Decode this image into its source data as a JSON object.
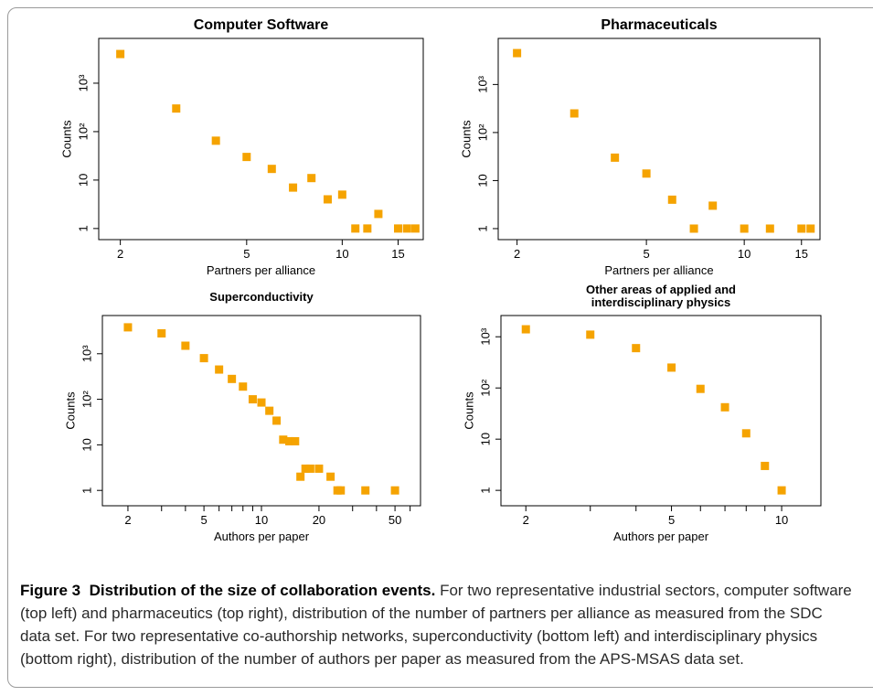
{
  "chart_data": [
    {
      "type": "scatter",
      "title": "Computer Software",
      "x_label": "Partners per alliance",
      "y_label": "Counts",
      "x": [
        2,
        3,
        4,
        5,
        6,
        7,
        8,
        9,
        10,
        11,
        12,
        13,
        15,
        16,
        17
      ],
      "values": [
        4000,
        300,
        65,
        30,
        17,
        7,
        11,
        4,
        5,
        1,
        1,
        2,
        1,
        1,
        1
      ],
      "color": "#f5a300",
      "xscale": "log",
      "yscale": "log",
      "xlim": [
        1.71,
        18
      ],
      "ylim": [
        0.59,
        8400
      ],
      "xticks": [
        2,
        5,
        10,
        15
      ],
      "yticks": [
        1,
        10,
        {
          "value": 100,
          "label": "10²"
        },
        {
          "value": 1000,
          "label": "10³"
        }
      ]
    },
    {
      "type": "scatter",
      "title": "Pharmaceuticals",
      "x_label": "Partners per alliance",
      "y_label": "Counts",
      "x": [
        2,
        3,
        4,
        5,
        6,
        7,
        8,
        10,
        12,
        15,
        16
      ],
      "values": [
        4500,
        250,
        30,
        14,
        4,
        1,
        3,
        1,
        1,
        1,
        1
      ],
      "color": "#f5a300",
      "xscale": "log",
      "yscale": "log",
      "xlim": [
        1.75,
        17.1
      ],
      "ylim": [
        0.59,
        9100
      ],
      "xticks": [
        2,
        5,
        10,
        15
      ],
      "yticks": [
        1,
        10,
        {
          "value": 100,
          "label": "10²"
        },
        {
          "value": 1000,
          "label": "10³"
        }
      ]
    },
    {
      "type": "scatter",
      "title": "Superconductivity",
      "x_label": "Authors per paper",
      "y_label": "Counts",
      "x": [
        2,
        3,
        4,
        5,
        6,
        7,
        8,
        9,
        10,
        11,
        12,
        13,
        14,
        15,
        16,
        17,
        18,
        20,
        23,
        25,
        26,
        35,
        50
      ],
      "values": [
        3800,
        2800,
        1500,
        800,
        450,
        280,
        190,
        100,
        85,
        56,
        34,
        13,
        12,
        12,
        2,
        3,
        3,
        3,
        2,
        1,
        1,
        1,
        1
      ],
      "color": "#f5a300",
      "xscale": "log",
      "yscale": "log",
      "xlim": [
        1.47,
        68
      ],
      "ylim": [
        0.46,
        6900
      ],
      "xticks": [
        2,
        5,
        10,
        20,
        50
      ],
      "xminor_ticks": [
        3,
        4,
        6,
        7,
        8,
        9,
        30,
        40,
        60
      ],
      "yticks": [
        1,
        10,
        {
          "value": 100,
          "label": "10²"
        },
        {
          "value": 1000,
          "label": "10³"
        }
      ]
    },
    {
      "type": "scatter",
      "title": "Other areas of applied and interdisciplinary physics",
      "x_label": "Authors per paper",
      "y_label": "Counts",
      "x": [
        2,
        3,
        4,
        5,
        6,
        7,
        8,
        9,
        10
      ],
      "values": [
        1400,
        1100,
        600,
        250,
        96,
        42,
        13,
        3,
        1
      ],
      "color": "#f5a300",
      "xscale": "log",
      "yscale": "log",
      "xlim": [
        1.71,
        12.8
      ],
      "ylim": [
        0.5,
        2600
      ],
      "xticks": [
        2,
        5,
        10
      ],
      "xminor_ticks": [
        3,
        4,
        6,
        7,
        8,
        9
      ],
      "yticks": [
        1,
        10,
        {
          "value": 100,
          "label": "10²"
        },
        {
          "value": 1000,
          "label": "10³"
        }
      ]
    }
  ],
  "caption": {
    "label": "Figure 3",
    "title": "Distribution of the size of collaboration events.",
    "text": "For two representative industrial sectors, computer software (top left) and pharmaceutics (top right), distribution of the number of partners per alliance as measured from the SDC data set. For two representative co-authorship networks, superconductivity (bottom left) and interdisciplinary physics (bottom right), distribution of the number of authors per paper as measured from the APS-MSAS data set."
  }
}
